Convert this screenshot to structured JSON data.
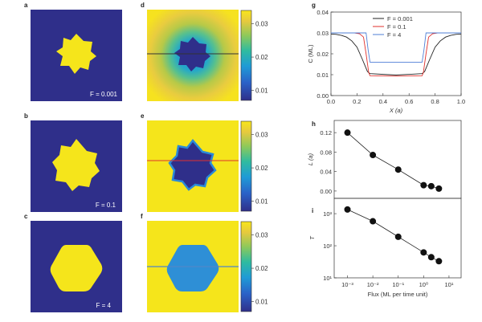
{
  "panel_labels": {
    "a": "a",
    "b": "b",
    "c": "c",
    "d": "d",
    "e": "e",
    "f": "f",
    "g": "g",
    "h": "h",
    "i": "i"
  },
  "flux_labels": {
    "a": "F = 0.001",
    "b": "F = 0.1",
    "c": "F = 4"
  },
  "colors": {
    "background_low": "#2f2f8a",
    "crystal": "#f5e51b",
    "cell_fill": "#2e8fd6",
    "line_a": "#222222",
    "line_b": "#e0322e",
    "line_c": "#4f7fd6"
  },
  "chart_data": [
    {
      "type": "heatmap",
      "panel": "colorbar",
      "ticks": [
        "0.03",
        "0.02",
        "0.01"
      ],
      "tick_values": [
        0.03,
        0.02,
        0.01
      ],
      "range": [
        0.007,
        0.034
      ]
    },
    {
      "type": "line",
      "panel": "g",
      "xlabel": "X (a)",
      "ylabel": "C (ML)",
      "xlim": [
        0,
        1
      ],
      "ylim": [
        0,
        0.04
      ],
      "xticks": [
        "0.0",
        "0.2",
        "0.4",
        "0.6",
        "0.8",
        "1.0"
      ],
      "xtick_values": [
        0,
        0.2,
        0.4,
        0.6,
        0.8,
        1.0
      ],
      "yticks": [
        "0.00",
        "0.01",
        "0.02",
        "0.03",
        "0.04"
      ],
      "ytick_values": [
        0,
        0.01,
        0.02,
        0.03,
        0.04
      ],
      "series": [
        {
          "name": "F = 0.001",
          "x": [
            0,
            0.04,
            0.08,
            0.12,
            0.16,
            0.2,
            0.24,
            0.28,
            0.3,
            0.5,
            0.7,
            0.72,
            0.76,
            0.8,
            0.84,
            0.88,
            0.92,
            0.96,
            1.0
          ],
          "y": [
            0.0295,
            0.0293,
            0.0288,
            0.028,
            0.0262,
            0.0232,
            0.0175,
            0.0115,
            0.0105,
            0.0098,
            0.0105,
            0.0115,
            0.0175,
            0.0232,
            0.0262,
            0.028,
            0.0288,
            0.0293,
            0.0295
          ]
        },
        {
          "name": "F = 0.1",
          "x": [
            0,
            0.18,
            0.22,
            0.25,
            0.27,
            0.29,
            0.3,
            0.5,
            0.7,
            0.71,
            0.73,
            0.75,
            0.78,
            0.82,
            1.0
          ],
          "y": [
            0.03,
            0.03,
            0.0296,
            0.028,
            0.02,
            0.011,
            0.0095,
            0.0093,
            0.0095,
            0.011,
            0.02,
            0.028,
            0.0296,
            0.03,
            0.03
          ]
        },
        {
          "name": "F = 4",
          "x": [
            0,
            0.27,
            0.285,
            0.3,
            0.5,
            0.7,
            0.715,
            0.73,
            1.0
          ],
          "y": [
            0.03,
            0.03,
            0.022,
            0.016,
            0.016,
            0.016,
            0.022,
            0.03,
            0.03
          ]
        }
      ]
    },
    {
      "type": "scatter",
      "panel": "h",
      "ylabel": "L (a)",
      "xscale": "log",
      "ylim": [
        -0.015,
        0.145
      ],
      "yticks": [
        "0.00",
        "0.04",
        "0.08",
        "0.12"
      ],
      "ytick_values": [
        0,
        0.04,
        0.08,
        0.12
      ],
      "x": [
        0.001,
        0.01,
        0.1,
        1,
        2,
        4
      ],
      "y": [
        0.12,
        0.074,
        0.044,
        0.012,
        0.01,
        0.005
      ]
    },
    {
      "type": "scatter",
      "panel": "i",
      "ylabel": "T",
      "xlabel": "Flux (ML per time unit)",
      "xscale": "log",
      "yscale": "log",
      "xlim": [
        0.0003,
        30
      ],
      "ylim": [
        10,
        3000
      ],
      "xticks": [
        "10⁻³",
        "10⁻²",
        "10⁻¹",
        "10⁰",
        "10¹"
      ],
      "xtick_values": [
        0.001,
        0.01,
        0.1,
        1,
        10
      ],
      "yticks": [
        "10³",
        "10²",
        "10¹"
      ],
      "ytick_values": [
        1000,
        100,
        10
      ],
      "x": [
        0.001,
        0.01,
        0.1,
        1,
        2,
        4
      ],
      "y": [
        1350,
        580,
        190,
        62,
        44,
        33
      ]
    }
  ]
}
